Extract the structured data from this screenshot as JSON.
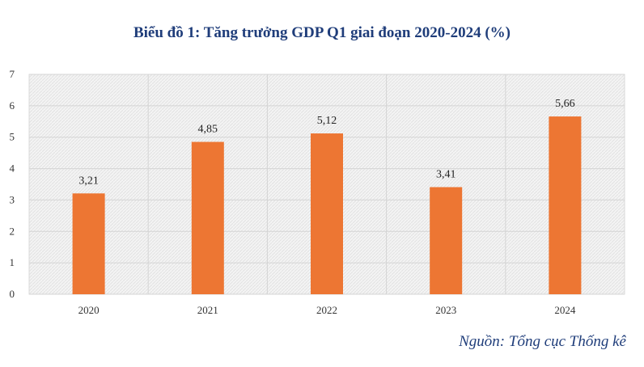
{
  "chart_data": {
    "type": "bar",
    "title": "Biểu đồ 1: Tăng trưởng GDP Q1 giai đoạn 2020-2024 (%)",
    "categories": [
      "2020",
      "2021",
      "2022",
      "2023",
      "2024"
    ],
    "values": [
      3.21,
      4.85,
      5.12,
      3.41,
      5.66
    ],
    "data_labels": [
      "3,21",
      "4,85",
      "5,12",
      "3,41",
      "5,66"
    ],
    "y_ticks": [
      "0",
      "1",
      "2",
      "3",
      "4",
      "5",
      "6",
      "7"
    ],
    "ylim": [
      0,
      7
    ],
    "xlabel": "",
    "ylabel": "",
    "grid": true,
    "legend": "none",
    "bar_color": "#ed7633",
    "plot_background": "hatched light gray"
  },
  "source": "Nguồn: Tổng cục Thống kê"
}
